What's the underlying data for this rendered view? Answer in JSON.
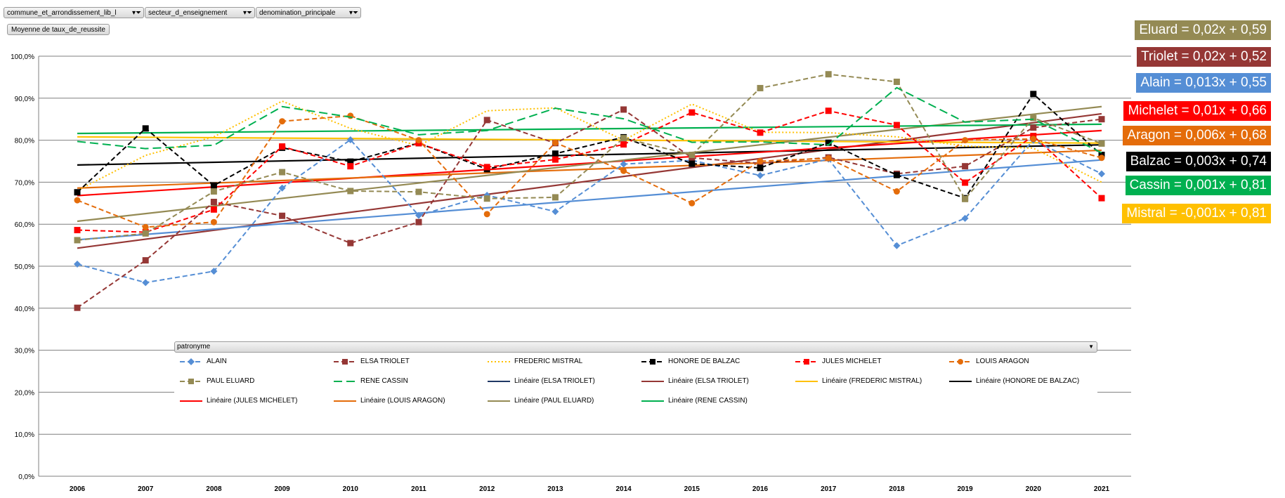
{
  "filters": [
    {
      "label": "commune_et_arrondissement_lib_l",
      "icon": "filter-icon"
    },
    {
      "label": "secteur_d_enseignement",
      "icon": "filter-icon"
    },
    {
      "label": "denomination_principale",
      "icon": "filter-icon"
    }
  ],
  "value_field": "Moyenne de taux_de_reussite",
  "legend_field": "patronyme",
  "equations": [
    {
      "text": "Eluard = 0,02x + 0,59",
      "color": "#948a54"
    },
    {
      "text": "Triolet = 0,02x + 0,52",
      "color": "#953735"
    },
    {
      "text": "Alain = 0,013x + 0,55",
      "color": "#558ed5"
    },
    {
      "text": "Michelet = 0,01x + 0,66",
      "color": "#ff0000"
    },
    {
      "text": "Aragon = 0,006x + 0,68",
      "color": "#e46c0a"
    },
    {
      "text": "Balzac = 0,003x + 0,74",
      "color": "#000000"
    },
    {
      "text": "Cassin = 0,001x + 0,81",
      "color": "#00b050"
    },
    {
      "text": "Mistral = -0,001x + 0,81",
      "color": "#ffc000"
    }
  ],
  "chart_data": {
    "type": "line",
    "ylim": [
      0,
      1
    ],
    "grid": true,
    "legend": "bottom",
    "x_ticks": [
      "2006",
      "2007",
      "2008",
      "2009",
      "2010",
      "2011",
      "2012",
      "2013",
      "2014",
      "2015",
      "2016",
      "2017",
      "2018",
      "2019",
      "2020",
      "2021"
    ],
    "y_ticks": [
      "0,0%",
      "10,0%",
      "20,0%",
      "30,0%",
      "40,0%",
      "50,0%",
      "60,0%",
      "70,0%",
      "80,0%",
      "90,0%",
      "100,0%"
    ],
    "series": [
      {
        "name": "ALAIN",
        "color": "#558ed5",
        "dash": "dashed",
        "marker": "diamond",
        "values": [
          0.505,
          0.461,
          0.488,
          0.686,
          0.801,
          0.621,
          0.669,
          0.63,
          0.743,
          0.752,
          0.716,
          0.755,
          0.549,
          0.614,
          0.8,
          0.72
        ]
      },
      {
        "name": "ELSA TRIOLET",
        "color": "#953735",
        "dash": "dashed",
        "marker": "square",
        "values": [
          0.401,
          0.514,
          0.653,
          0.62,
          0.555,
          0.605,
          0.848,
          0.793,
          0.873,
          0.758,
          0.745,
          0.759,
          0.72,
          0.738,
          0.83,
          0.85
        ]
      },
      {
        "name": "FREDERIC MISTRAL",
        "color": "#ffc000",
        "dash": "dotted",
        "marker": "none",
        "values": [
          0.68,
          0.764,
          0.808,
          0.893,
          0.828,
          0.787,
          0.87,
          0.877,
          0.8,
          0.886,
          0.819,
          0.818,
          0.808,
          0.786,
          0.781,
          0.7
        ]
      },
      {
        "name": "HONORE DE BALZAC",
        "color": "#000000",
        "dash": "dashed",
        "marker": "square",
        "values": [
          0.676,
          0.828,
          0.692,
          0.782,
          0.749,
          0.793,
          0.731,
          0.768,
          0.807,
          0.744,
          0.734,
          0.794,
          0.717,
          0.662,
          0.91,
          0.765
        ]
      },
      {
        "name": "JULES MICHELET",
        "color": "#ff0000",
        "dash": "dashed",
        "marker": "square",
        "values": [
          0.586,
          0.581,
          0.635,
          0.785,
          0.738,
          0.793,
          0.736,
          0.754,
          0.79,
          0.866,
          0.818,
          0.87,
          0.836,
          0.699,
          0.81,
          0.662
        ]
      },
      {
        "name": "LOUIS ARAGON",
        "color": "#e46c0a",
        "dash": "dashed",
        "marker": "circle",
        "values": [
          0.657,
          0.593,
          0.605,
          0.845,
          0.858,
          0.8,
          0.624,
          0.794,
          0.727,
          0.65,
          0.75,
          0.757,
          0.678,
          0.8,
          0.803,
          0.758
        ]
      },
      {
        "name": "PAUL ELUARD",
        "color": "#948a54",
        "dash": "dashed",
        "marker": "square",
        "values": [
          0.562,
          0.578,
          0.678,
          0.724,
          0.679,
          0.677,
          0.661,
          0.664,
          0.805,
          0.765,
          0.924,
          0.957,
          0.939,
          0.66,
          0.853,
          0.792
        ]
      },
      {
        "name": "RENE CASSIN",
        "color": "#00b050",
        "dash": "longdash",
        "marker": "none",
        "values": [
          0.797,
          0.78,
          0.788,
          0.88,
          0.855,
          0.813,
          0.823,
          0.876,
          0.851,
          0.795,
          0.796,
          0.789,
          0.925,
          0.843,
          0.85,
          0.77
        ]
      }
    ],
    "trendlines": [
      {
        "name": "Linéaire (ELSA TRIOLET)",
        "color": "#1f3864",
        "start": 0.543,
        "end": 0.863,
        "draw": false
      },
      {
        "name": "Linéaire (ELSA TRIOLET)",
        "color": "#953735",
        "start": 0.543,
        "end": 0.863,
        "draw": true
      },
      {
        "name": "Linéaire (FREDERIC MISTRAL)",
        "color": "#ffc000",
        "start": 0.808,
        "end": 0.793,
        "draw": true
      },
      {
        "name": "Linéaire (HONORE DE BALZAC)",
        "color": "#000000",
        "start": 0.741,
        "end": 0.789,
        "draw": true
      },
      {
        "name": "Linéaire (JULES MICHELET)",
        "color": "#ff0000",
        "start": 0.668,
        "end": 0.823,
        "draw": true
      },
      {
        "name": "Linéaire (LOUIS ARAGON)",
        "color": "#e46c0a",
        "start": 0.686,
        "end": 0.776,
        "draw": true
      },
      {
        "name": "Linéaire (PAUL ELUARD)",
        "color": "#948a54",
        "start": 0.607,
        "end": 0.88,
        "draw": true
      },
      {
        "name": "Linéaire (RENE CASSIN)",
        "color": "#00b050",
        "start": 0.816,
        "end": 0.838,
        "draw": true
      },
      {
        "name": "",
        "color": "#558ed5",
        "start": 0.563,
        "end": 0.753,
        "draw": true
      }
    ]
  }
}
